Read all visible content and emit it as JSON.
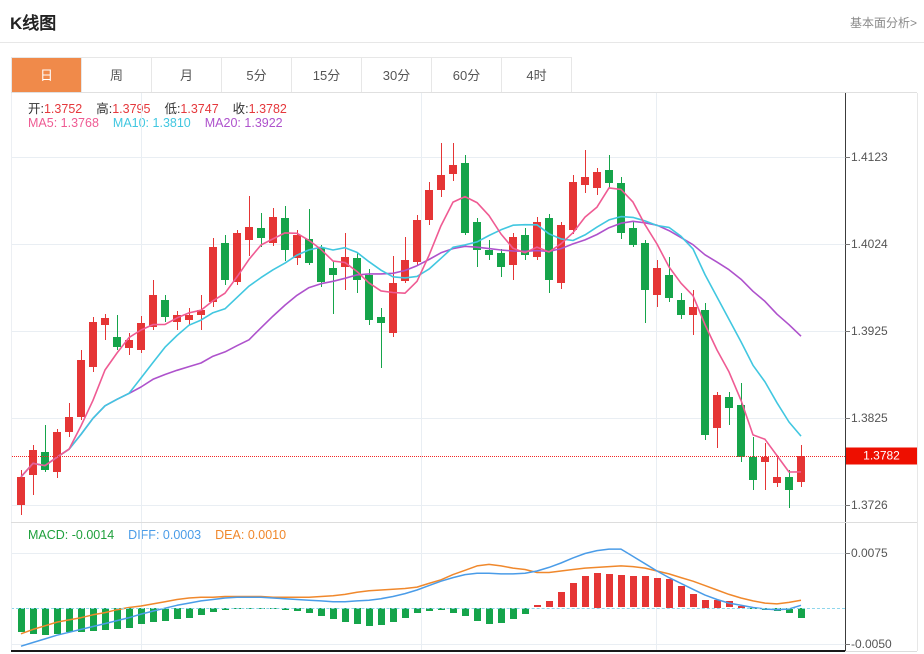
{
  "page": {
    "title": "K线图",
    "link_label": "基本面分析>"
  },
  "tabs": {
    "items": [
      "日",
      "周",
      "月",
      "5分",
      "15分",
      "30分",
      "60分",
      "4时"
    ],
    "active_index": 0,
    "active_color": "#f08a4a"
  },
  "ohlc": {
    "open_label": "开:",
    "open": "1.3752",
    "high_label": "高:",
    "high": "1.3795",
    "low_label": "低:",
    "low": "1.3747",
    "close_label": "收:",
    "close": "1.3782"
  },
  "ma_header": {
    "ma5_label": "MA5:",
    "ma5": "1.3768",
    "ma10_label": "MA10:",
    "ma10": "1.3810",
    "ma20_label": "MA20:",
    "ma20": "1.3922"
  },
  "macd_header": {
    "macd_label": "MACD:",
    "macd": "-0.0014",
    "diff_label": "DIFF:",
    "diff": "0.0003",
    "dea_label": "DEA:",
    "dea": "0.0010"
  },
  "colors": {
    "up": "#e53535",
    "down": "#15a44a",
    "ma5": "#ef5b93",
    "ma10": "#41c7e0",
    "ma20": "#ae52cc",
    "diff": "#4a9ce8",
    "dea": "#f0882c",
    "badge": "#ee0f00",
    "price_line": "#f22626",
    "label_red": "#e5383c",
    "macd_green": "#1fa03c",
    "grid": "#e9eef3"
  },
  "chart_data": {
    "type": "candlestick-with-macd",
    "title": "K线图 (daily K-line with MA5/MA10/MA20 and MACD)",
    "price_axis": {
      "tick_labels": [
        "1.4123",
        "1.4024",
        "1.3925",
        "1.3825",
        "1.3726"
      ],
      "tick_values": [
        1.4123,
        1.4024,
        1.3925,
        1.3825,
        1.3726
      ],
      "last_price_label": "1.3782",
      "last_price": 1.3782
    },
    "ma_periods": [
      5,
      10,
      20
    ],
    "candles_ohlc": [
      [
        1.3726,
        1.3766,
        1.3715,
        1.3758
      ],
      [
        1.376,
        1.3795,
        1.3737,
        1.3789
      ],
      [
        1.3786,
        1.3817,
        1.3763,
        1.3766
      ],
      [
        1.3764,
        1.3813,
        1.3757,
        1.3809
      ],
      [
        1.3809,
        1.3842,
        1.3804,
        1.3826
      ],
      [
        1.3826,
        1.3903,
        1.3823,
        1.3891
      ],
      [
        1.3883,
        1.3941,
        1.3878,
        1.3935
      ],
      [
        1.3931,
        1.3944,
        1.3914,
        1.3939
      ],
      [
        1.3918,
        1.3943,
        1.3903,
        1.3906
      ],
      [
        1.3905,
        1.3922,
        1.3897,
        1.3914
      ],
      [
        1.3903,
        1.3942,
        1.3899,
        1.3934
      ],
      [
        1.3929,
        1.3983,
        1.3925,
        1.3966
      ],
      [
        1.396,
        1.3966,
        1.3935,
        1.394
      ],
      [
        1.3935,
        1.3947,
        1.3926,
        1.3943
      ],
      [
        1.3937,
        1.3951,
        1.3931,
        1.3943
      ],
      [
        1.3943,
        1.3966,
        1.3926,
        1.3949
      ],
      [
        1.3957,
        1.4031,
        1.3952,
        1.402
      ],
      [
        1.4025,
        1.4034,
        1.3977,
        1.3983
      ],
      [
        1.398,
        1.404,
        1.3977,
        1.4036
      ],
      [
        1.4028,
        1.4078,
        1.401,
        1.4043
      ],
      [
        1.4042,
        1.4059,
        1.402,
        1.4031
      ],
      [
        1.4025,
        1.4065,
        1.4021,
        1.4055
      ],
      [
        1.4053,
        1.4067,
        1.4004,
        1.4017
      ],
      [
        1.4008,
        1.404,
        1.4,
        1.4034
      ],
      [
        1.4029,
        1.4064,
        1.4,
        1.4002
      ],
      [
        1.4019,
        1.4023,
        1.3975,
        1.398
      ],
      [
        1.3996,
        1.4004,
        1.3944,
        1.3988
      ],
      [
        1.3997,
        1.4036,
        1.3971,
        1.4009
      ],
      [
        1.4008,
        1.4015,
        1.3968,
        1.3983
      ],
      [
        1.3988,
        1.3995,
        1.3931,
        1.3937
      ],
      [
        1.3941,
        1.3951,
        1.3882,
        1.3934
      ],
      [
        1.3922,
        1.401,
        1.3918,
        1.3979
      ],
      [
        1.3982,
        1.4032,
        1.3979,
        1.4005
      ],
      [
        1.4003,
        1.4057,
        1.4,
        1.4051
      ],
      [
        1.4051,
        1.4095,
        1.4045,
        1.4085
      ],
      [
        1.4085,
        1.4139,
        1.4078,
        1.4103
      ],
      [
        1.4103,
        1.4139,
        1.4096,
        1.4114
      ],
      [
        1.4116,
        1.4125,
        1.4034,
        1.4036
      ],
      [
        1.4049,
        1.4053,
        1.3998,
        1.4017
      ],
      [
        1.4017,
        1.4028,
        1.4005,
        1.4011
      ],
      [
        1.4014,
        1.4018,
        1.3986,
        1.3998
      ],
      [
        1.4,
        1.4036,
        1.3983,
        1.4032
      ],
      [
        1.4034,
        1.4042,
        1.4006,
        1.4011
      ],
      [
        1.4009,
        1.4055,
        1.4005,
        1.4049
      ],
      [
        1.4053,
        1.4058,
        1.3968,
        1.3983
      ],
      [
        1.3979,
        1.4049,
        1.3972,
        1.4045
      ],
      [
        1.404,
        1.4103,
        1.4035,
        1.4095
      ],
      [
        1.4091,
        1.4131,
        1.4082,
        1.41
      ],
      [
        1.4088,
        1.411,
        1.408,
        1.4106
      ],
      [
        1.4108,
        1.4125,
        1.4088,
        1.4093
      ],
      [
        1.4093,
        1.41,
        1.403,
        1.4036
      ],
      [
        1.4042,
        1.405,
        1.402,
        1.4023
      ],
      [
        1.4025,
        1.4028,
        1.3934,
        1.3971
      ],
      [
        1.3966,
        1.4005,
        1.3952,
        1.3996
      ],
      [
        1.3988,
        1.4009,
        1.3958,
        1.3962
      ],
      [
        1.396,
        1.3968,
        1.3938,
        1.3943
      ],
      [
        1.3943,
        1.3971,
        1.392,
        1.3952
      ],
      [
        1.3948,
        1.3956,
        1.38,
        1.3806
      ],
      [
        1.3814,
        1.3855,
        1.3791,
        1.3851
      ],
      [
        1.3849,
        1.3855,
        1.3817,
        1.3837
      ],
      [
        1.384,
        1.3865,
        1.3775,
        1.3781
      ],
      [
        1.3781,
        1.3804,
        1.3743,
        1.3755
      ],
      [
        1.3775,
        1.3797,
        1.3743,
        1.3781
      ],
      [
        1.3751,
        1.3783,
        1.3746,
        1.3758
      ],
      [
        1.3758,
        1.3766,
        1.3723,
        1.3743
      ],
      [
        1.3752,
        1.3795,
        1.3747,
        1.3782
      ]
    ],
    "macd": {
      "axis_tick_labels": [
        "0.0075",
        "-0.0050"
      ],
      "axis_tick_values": [
        0.0075,
        -0.005
      ],
      "hist": [
        -0.0034,
        -0.0036,
        -0.0037,
        -0.0036,
        -0.0034,
        -0.0033,
        -0.0032,
        -0.0031,
        -0.003,
        -0.0028,
        -0.0022,
        -0.002,
        -0.0018,
        -0.0016,
        -0.0014,
        -0.001,
        -0.0006,
        -0.0004,
        -0.0002,
        -0.0001,
        -0.0001,
        -0.0002,
        -0.0003,
        -0.0005,
        -0.0008,
        -0.0012,
        -0.0016,
        -0.002,
        -0.0023,
        -0.0025,
        -0.0024,
        -0.002,
        -0.0014,
        -0.0008,
        -0.0005,
        -0.0004,
        -0.0007,
        -0.0012,
        -0.0019,
        -0.0023,
        -0.0021,
        -0.0016,
        -0.0009,
        0.0004,
        0.0009,
        0.0021,
        0.0034,
        0.0043,
        0.0048,
        0.0046,
        0.0044,
        0.0043,
        0.0043,
        0.0041,
        0.0039,
        0.003,
        0.0018,
        0.0011,
        0.0011,
        0.0009,
        0.0002,
        -0.0002,
        -0.0003,
        -0.0005,
        -0.0008,
        -0.0014
      ],
      "diff": [
        -0.0053,
        -0.0048,
        -0.0043,
        -0.0038,
        -0.0034,
        -0.003,
        -0.0026,
        -0.0022,
        -0.0018,
        -0.0014,
        -0.0009,
        -0.0005,
        -0.0001,
        0.0003,
        0.0006,
        0.0009,
        0.0011,
        0.0013,
        0.0014,
        0.0014,
        0.0014,
        0.0013,
        0.0012,
        0.0011,
        0.001,
        0.0009,
        0.0008,
        0.0008,
        0.0009,
        0.001,
        0.0012,
        0.0015,
        0.0019,
        0.0024,
        0.003,
        0.0036,
        0.0041,
        0.0045,
        0.0047,
        0.0047,
        0.0046,
        0.0046,
        0.0047,
        0.005,
        0.0055,
        0.0061,
        0.0068,
        0.0074,
        0.0078,
        0.008,
        0.008,
        0.007,
        0.006,
        0.005,
        0.0041,
        0.0033,
        0.0025,
        0.0017,
        0.0011,
        0.0006,
        0.0003,
        0.0,
        -0.0002,
        -0.0003,
        -0.0002,
        0.0003
      ],
      "dea": [
        -0.0036,
        -0.003,
        -0.0025,
        -0.002,
        -0.0017,
        -0.0014,
        -0.001,
        -0.0007,
        -0.0003,
        0.0,
        0.0002,
        0.0005,
        0.0008,
        0.0011,
        0.0013,
        0.0014,
        0.0014,
        0.0015,
        0.0015,
        0.0015,
        0.0015,
        0.0014,
        0.0014,
        0.0014,
        0.0014,
        0.0015,
        0.0016,
        0.0018,
        0.0021,
        0.0023,
        0.0024,
        0.0025,
        0.0026,
        0.0028,
        0.0033,
        0.0038,
        0.0045,
        0.0051,
        0.0057,
        0.0059,
        0.0057,
        0.0054,
        0.0052,
        0.0048,
        0.0048,
        0.005,
        0.0052,
        0.0054,
        0.0055,
        0.0056,
        0.0057,
        0.0056,
        0.0054,
        0.005,
        0.0046,
        0.0041,
        0.0036,
        0.003,
        0.0024,
        0.0018,
        0.0013,
        0.0009,
        0.0006,
        0.0005,
        0.0007,
        0.001
      ]
    }
  }
}
